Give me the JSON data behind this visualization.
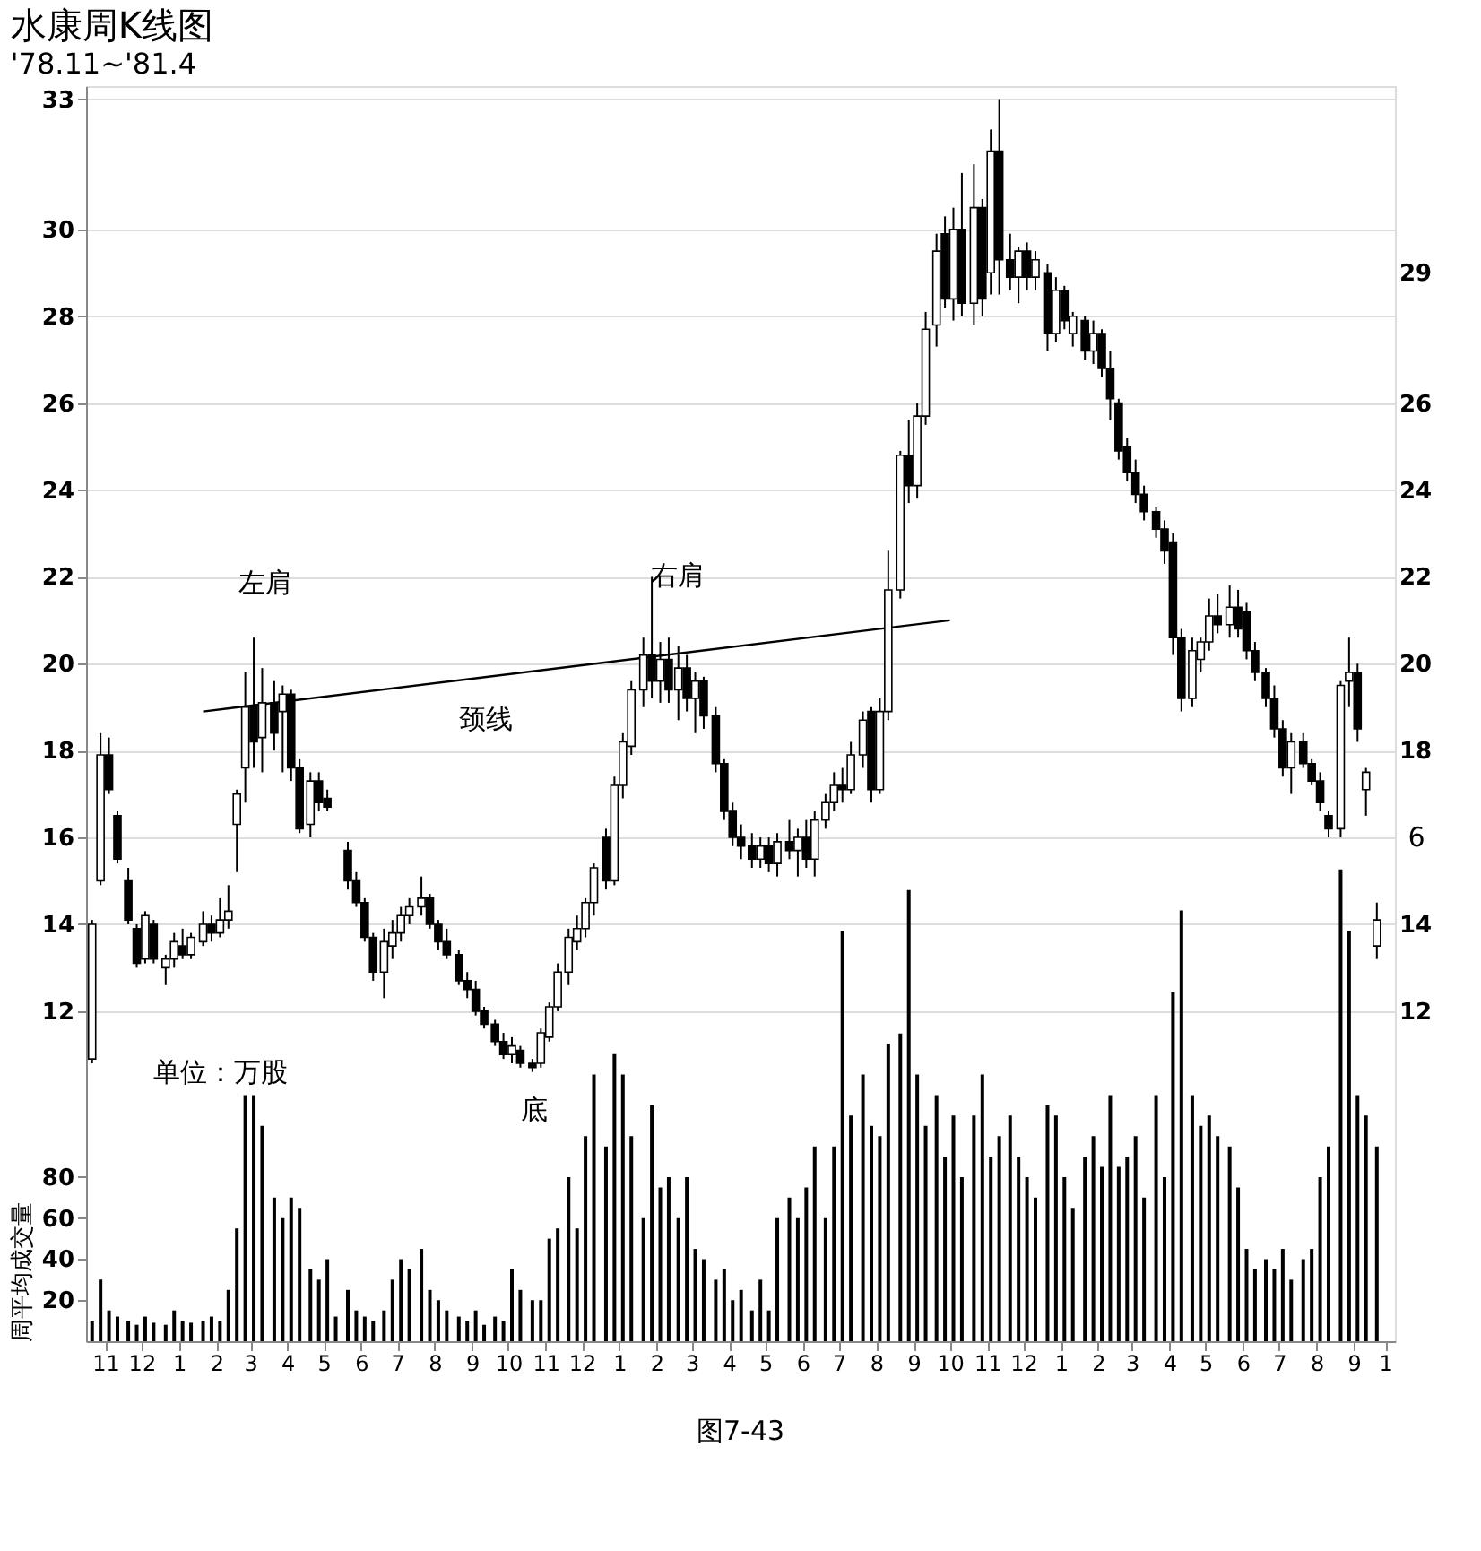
{
  "chart_data": {
    "type": "candlestick",
    "title": "水康周K线图",
    "subtitle": "'78.11~'81.4",
    "grid": "y",
    "y2label": "周平均成交量",
    "x": [
      "1978-11-01",
      "1978-11-08",
      "1978-11-15",
      "1978-11-22",
      "1978-12-01",
      "1978-12-08",
      "1978-12-15",
      "1978-12-22",
      "1979-01-01",
      "1979-01-08",
      "1979-01-15",
      "1979-01-22",
      "1979-02-01",
      "1979-02-08",
      "1979-02-15",
      "1979-02-22",
      "1979-03-01",
      "1979-03-08",
      "1979-03-15",
      "1979-03-22",
      "1979-04-01",
      "1979-04-08",
      "1979-04-15",
      "1979-04-22",
      "1979-05-01",
      "1979-05-08",
      "1979-05-15",
      "1979-05-22",
      "1979-06-01",
      "1979-06-08",
      "1979-06-15",
      "1979-06-22",
      "1979-07-01",
      "1979-07-08",
      "1979-07-15",
      "1979-07-22",
      "1979-08-01",
      "1979-08-08",
      "1979-08-15",
      "1979-08-22",
      "1979-09-01",
      "1979-09-08",
      "1979-09-15",
      "1979-09-22",
      "1979-10-01",
      "1979-10-08",
      "1979-10-15",
      "1979-10-22",
      "1979-11-01",
      "1979-11-08",
      "1979-11-15",
      "1979-11-22",
      "1979-12-01",
      "1979-12-08",
      "1979-12-15",
      "1979-12-22",
      "1980-01-01",
      "1980-01-08",
      "1980-01-15",
      "1980-01-22",
      "1980-02-01",
      "1980-02-08",
      "1980-02-15",
      "1980-02-22",
      "1980-03-01",
      "1980-03-08",
      "1980-03-15",
      "1980-03-22",
      "1980-04-01",
      "1980-04-08",
      "1980-04-15",
      "1980-04-22",
      "1980-05-01",
      "1980-05-08",
      "1980-05-15",
      "1980-05-22",
      "1980-06-01",
      "1980-06-08",
      "1980-06-15",
      "1980-06-22",
      "1980-07-01",
      "1980-07-08",
      "1980-07-15",
      "1980-07-22",
      "1980-08-01",
      "1980-08-08",
      "1980-08-15",
      "1980-08-22",
      "1980-09-01",
      "1980-09-08",
      "1980-09-15",
      "1980-09-22",
      "1980-10-01",
      "1980-10-08",
      "1980-10-15",
      "1980-10-22",
      "1980-11-01",
      "1980-11-08",
      "1980-11-15",
      "1980-11-22",
      "1980-12-01",
      "1980-12-08",
      "1980-12-15",
      "1980-12-22",
      "1981-01-01",
      "1981-01-08",
      "1981-01-15",
      "1981-01-22",
      "1981-02-01",
      "1981-02-08",
      "1981-02-15",
      "1981-02-22",
      "1981-03-01",
      "1981-03-08",
      "1981-03-15",
      "1981-03-22",
      "1981-04-01",
      "1981-04-08",
      "1981-04-15",
      "1981-04-22",
      "1981-05-01",
      "1981-05-08",
      "1981-05-15",
      "1981-05-22",
      "1981-06-01",
      "1981-06-08",
      "1981-06-15",
      "1981-06-22",
      "1981-07-01",
      "1981-07-08",
      "1981-07-15",
      "1981-07-22",
      "1981-08-01",
      "1981-08-08",
      "1981-08-15",
      "1981-08-22",
      "1981-09-01",
      "1981-09-08",
      "1981-09-15",
      "1981-09-22",
      "1981-10-01"
    ],
    "ohlc": [
      [
        10.9,
        14.1,
        10.8,
        14.0
      ],
      [
        15.0,
        18.4,
        14.9,
        17.9
      ],
      [
        17.9,
        18.3,
        17.0,
        17.1
      ],
      [
        16.5,
        16.6,
        15.4,
        15.5
      ],
      [
        15.0,
        15.3,
        14.0,
        14.1
      ],
      [
        13.9,
        14.0,
        13.0,
        13.1
      ],
      [
        13.2,
        14.3,
        13.1,
        14.2
      ],
      [
        14.0,
        14.1,
        13.1,
        13.2
      ],
      [
        13.0,
        13.3,
        12.6,
        13.2
      ],
      [
        13.2,
        13.8,
        13.0,
        13.6
      ],
      [
        13.5,
        13.9,
        13.2,
        13.3
      ],
      [
        13.3,
        13.8,
        13.2,
        13.7
      ],
      [
        13.6,
        14.3,
        13.5,
        14.0
      ],
      [
        14.0,
        14.2,
        13.6,
        13.8
      ],
      [
        13.8,
        14.6,
        13.7,
        14.1
      ],
      [
        14.1,
        14.9,
        13.9,
        14.3
      ],
      [
        16.3,
        17.1,
        15.2,
        17.0
      ],
      [
        17.6,
        19.8,
        16.8,
        19.0
      ],
      [
        19.0,
        20.6,
        17.6,
        18.2
      ],
      [
        18.3,
        19.9,
        17.5,
        19.1
      ],
      [
        19.1,
        19.6,
        18.0,
        18.4
      ],
      [
        18.9,
        19.5,
        17.5,
        19.3
      ],
      [
        19.3,
        19.4,
        17.3,
        17.6
      ],
      [
        17.6,
        17.8,
        16.1,
        16.2
      ],
      [
        16.3,
        17.5,
        16.0,
        17.3
      ],
      [
        17.3,
        17.5,
        16.6,
        16.8
      ],
      [
        16.9,
        17.1,
        16.6,
        16.7
      ],
      null,
      [
        15.7,
        15.9,
        14.8,
        15.0
      ],
      [
        15.0,
        15.2,
        14.4,
        14.5
      ],
      [
        14.5,
        14.6,
        13.6,
        13.7
      ],
      [
        13.7,
        13.8,
        12.7,
        12.9
      ],
      [
        12.9,
        13.9,
        12.3,
        13.6
      ],
      [
        13.5,
        14.1,
        13.2,
        13.8
      ],
      [
        13.8,
        14.4,
        13.6,
        14.2
      ],
      [
        14.2,
        14.6,
        14.0,
        14.4
      ],
      [
        14.4,
        15.1,
        14.2,
        14.6
      ],
      [
        14.6,
        14.7,
        13.9,
        14.0
      ],
      [
        14.0,
        14.1,
        13.4,
        13.6
      ],
      [
        13.6,
        13.9,
        13.2,
        13.3
      ],
      [
        13.3,
        13.4,
        12.6,
        12.7
      ],
      [
        12.7,
        12.9,
        12.3,
        12.5
      ],
      [
        12.5,
        12.7,
        11.9,
        12.0
      ],
      [
        12.0,
        12.1,
        11.6,
        11.7
      ],
      [
        11.7,
        11.8,
        11.2,
        11.3
      ],
      [
        11.3,
        11.5,
        10.9,
        11.0
      ],
      [
        11.0,
        11.4,
        10.8,
        11.2
      ],
      [
        11.1,
        11.2,
        10.7,
        10.8
      ],
      [
        10.8,
        10.9,
        10.6,
        10.7
      ],
      [
        10.8,
        11.6,
        10.7,
        11.5
      ],
      [
        11.4,
        12.2,
        11.3,
        12.1
      ],
      [
        12.1,
        13.1,
        12.0,
        12.9
      ],
      [
        12.9,
        13.9,
        12.6,
        13.7
      ],
      [
        13.6,
        14.2,
        13.4,
        13.9
      ],
      [
        13.9,
        14.6,
        13.7,
        14.5
      ],
      [
        14.5,
        15.4,
        14.2,
        15.3
      ],
      [
        16.0,
        16.2,
        14.8,
        15.0
      ],
      [
        15.0,
        17.4,
        14.9,
        17.2
      ],
      [
        17.2,
        18.4,
        16.9,
        18.2
      ],
      [
        18.1,
        19.6,
        17.9,
        19.4
      ],
      [
        19.4,
        20.6,
        19.0,
        20.2
      ],
      [
        20.2,
        22.0,
        19.2,
        19.6
      ],
      [
        19.6,
        20.5,
        19.1,
        20.1
      ],
      [
        20.1,
        20.6,
        19.1,
        19.4
      ],
      [
        19.4,
        20.4,
        18.7,
        19.9
      ],
      [
        19.9,
        20.2,
        18.9,
        19.2
      ],
      [
        19.2,
        19.8,
        18.4,
        19.6
      ],
      [
        19.6,
        19.7,
        18.5,
        18.8
      ],
      [
        18.8,
        19.0,
        17.5,
        17.7
      ],
      [
        17.7,
        17.8,
        16.4,
        16.6
      ],
      [
        16.6,
        16.8,
        15.8,
        16.0
      ],
      [
        16.0,
        16.3,
        15.5,
        15.8
      ],
      [
        15.8,
        16.1,
        15.3,
        15.5
      ],
      [
        15.5,
        16.0,
        15.3,
        15.8
      ],
      [
        15.8,
        16.0,
        15.2,
        15.4
      ],
      [
        15.4,
        16.1,
        15.1,
        15.9
      ],
      [
        15.9,
        16.4,
        15.5,
        15.7
      ],
      [
        15.7,
        16.2,
        15.1,
        16.0
      ],
      [
        16.0,
        16.4,
        15.3,
        15.5
      ],
      [
        15.5,
        16.6,
        15.1,
        16.4
      ],
      [
        16.4,
        17.0,
        16.2,
        16.8
      ],
      [
        16.8,
        17.5,
        16.6,
        17.2
      ],
      [
        17.2,
        17.6,
        16.8,
        17.1
      ],
      [
        17.1,
        18.2,
        17.0,
        17.9
      ],
      [
        17.9,
        18.9,
        17.6,
        18.7
      ],
      [
        18.9,
        19.0,
        16.8,
        17.1
      ],
      [
        17.1,
        19.2,
        17.0,
        18.9
      ],
      [
        18.9,
        22.6,
        18.7,
        21.7
      ],
      [
        21.7,
        24.9,
        21.5,
        24.8
      ],
      [
        24.8,
        25.6,
        23.7,
        24.1
      ],
      [
        24.1,
        26.0,
        23.8,
        25.7
      ],
      [
        25.7,
        28.1,
        25.5,
        27.7
      ],
      [
        27.8,
        29.9,
        27.3,
        29.5
      ],
      [
        29.9,
        30.3,
        28.2,
        28.4
      ],
      [
        28.4,
        30.5,
        27.9,
        30.0
      ],
      [
        30.0,
        31.3,
        28.0,
        28.3
      ],
      [
        28.3,
        31.5,
        27.8,
        30.5
      ],
      [
        30.5,
        30.7,
        28.0,
        28.4
      ],
      [
        29.0,
        32.3,
        28.5,
        31.8
      ],
      [
        31.8,
        33.0,
        28.5,
        29.3
      ],
      [
        29.3,
        29.9,
        28.6,
        28.9
      ],
      [
        28.9,
        29.6,
        28.3,
        29.5
      ],
      [
        29.5,
        29.7,
        28.6,
        28.9
      ],
      [
        28.9,
        29.5,
        28.6,
        29.3
      ],
      [
        29.0,
        29.2,
        27.2,
        27.6
      ],
      [
        27.6,
        28.9,
        27.4,
        28.6
      ],
      [
        28.6,
        28.7,
        27.7,
        27.9
      ],
      [
        27.6,
        28.1,
        27.3,
        28.0
      ],
      [
        27.9,
        28.0,
        27.0,
        27.2
      ],
      [
        27.2,
        27.9,
        26.9,
        27.6
      ],
      [
        27.6,
        27.7,
        26.6,
        26.8
      ],
      [
        26.8,
        27.2,
        25.6,
        26.1
      ],
      [
        26.0,
        26.1,
        24.7,
        24.9
      ],
      [
        25.0,
        25.2,
        24.2,
        24.4
      ],
      [
        24.4,
        24.7,
        23.7,
        23.9
      ],
      [
        23.9,
        24.1,
        23.3,
        23.5
      ],
      [
        23.5,
        23.6,
        22.9,
        23.1
      ],
      [
        23.1,
        23.3,
        22.3,
        22.6
      ],
      [
        22.8,
        23.0,
        20.2,
        20.6
      ],
      [
        20.6,
        20.8,
        18.9,
        19.2
      ],
      [
        19.2,
        20.6,
        19.0,
        20.3
      ],
      [
        20.1,
        20.6,
        19.8,
        20.5
      ],
      [
        20.5,
        21.5,
        20.3,
        21.1
      ],
      [
        21.1,
        21.6,
        20.7,
        20.9
      ],
      [
        20.9,
        21.8,
        20.6,
        21.3
      ],
      [
        21.3,
        21.7,
        20.6,
        20.8
      ],
      [
        21.2,
        21.4,
        20.1,
        20.3
      ],
      [
        20.3,
        20.5,
        19.6,
        19.8
      ],
      [
        19.8,
        19.9,
        19.0,
        19.2
      ],
      [
        19.2,
        19.5,
        18.3,
        18.5
      ],
      [
        18.5,
        18.7,
        17.4,
        17.6
      ],
      [
        17.6,
        18.4,
        17.0,
        18.2
      ],
      [
        18.2,
        18.4,
        17.6,
        17.7
      ],
      [
        17.7,
        17.8,
        17.2,
        17.3
      ],
      [
        17.3,
        17.5,
        16.6,
        16.8
      ],
      [
        16.5,
        16.6,
        16.0,
        16.2
      ],
      [
        16.2,
        19.6,
        16.0,
        19.5
      ],
      [
        19.6,
        20.6,
        19.0,
        19.8
      ],
      [
        19.8,
        20.0,
        18.2,
        18.5
      ],
      [
        17.1,
        17.6,
        16.5,
        17.5
      ],
      [
        13.5,
        14.5,
        13.2,
        14.1
      ]
    ],
    "colors": [
      "#ffffff",
      "#ffffff",
      "#000000",
      "#000000",
      "#000000",
      "#000000",
      "#ffffff",
      "#000000",
      "#ffffff",
      "#ffffff",
      "#000000",
      "#ffffff",
      "#ffffff",
      "#000000",
      "#ffffff",
      "#ffffff",
      "#ffffff",
      "#ffffff",
      "#000000",
      "#ffffff",
      "#000000",
      "#ffffff",
      "#000000",
      "#000000",
      "#ffffff",
      "#000000",
      "#000000",
      null,
      "#000000",
      "#000000",
      "#000000",
      "#000000",
      "#ffffff",
      "#ffffff",
      "#ffffff",
      "#ffffff",
      "#ffffff",
      "#000000",
      "#000000",
      "#000000",
      "#000000",
      "#000000",
      "#000000",
      "#000000",
      "#000000",
      "#000000",
      "#ffffff",
      "#000000",
      "#000000",
      "#ffffff",
      "#ffffff",
      "#ffffff",
      "#ffffff",
      "#ffffff",
      "#ffffff",
      "#ffffff",
      "#000000",
      "#ffffff",
      "#ffffff",
      "#ffffff",
      "#ffffff",
      "#000000",
      "#ffffff",
      "#000000",
      "#ffffff",
      "#000000",
      "#ffffff",
      "#000000",
      "#000000",
      "#000000",
      "#000000",
      "#000000",
      "#000000",
      "#ffffff",
      "#000000",
      "#ffffff",
      "#000000",
      "#ffffff",
      "#000000",
      "#ffffff",
      "#ffffff",
      "#ffffff",
      "#000000",
      "#ffffff",
      "#ffffff",
      "#000000",
      "#ffffff",
      "#ffffff",
      "#ffffff",
      "#000000",
      "#ffffff",
      "#ffffff",
      "#ffffff",
      "#000000",
      "#ffffff",
      "#000000",
      "#ffffff",
      "#000000",
      "#ffffff",
      "#000000",
      "#000000",
      "#ffffff",
      "#000000",
      "#ffffff",
      "#000000",
      "#ffffff",
      "#000000",
      "#ffffff",
      "#000000",
      "#ffffff",
      "#000000",
      "#000000",
      "#000000",
      "#000000",
      "#000000",
      "#000000",
      "#000000",
      "#000000",
      "#000000",
      "#000000",
      "#ffffff",
      "#ffffff",
      "#ffffff",
      "#000000",
      "#ffffff",
      "#000000",
      "#000000",
      "#000000",
      "#000000",
      "#000000",
      "#000000",
      "#ffffff",
      "#000000",
      "#000000",
      "#000000",
      "#000000",
      "#ffffff",
      "#ffffff",
      "#000000",
      "#ffffff",
      "#ffffff"
    ],
    "series": [
      {
        "type": "line",
        "color": "#000000",
        "x": [
          "1979-02-01",
          "1980-10-12"
        ],
        "values": [
          18.9,
          21.0
        ]
      },
      {
        "type": "bar",
        "axis": "y2",
        "color": "#000000",
        "values": [
          10,
          30,
          15,
          12,
          10,
          8,
          12,
          9,
          8,
          15,
          10,
          9,
          10,
          12,
          10,
          25,
          55,
          120,
          120,
          105,
          70,
          60,
          70,
          65,
          35,
          30,
          40,
          12,
          25,
          15,
          12,
          10,
          15,
          30,
          40,
          35,
          45,
          25,
          20,
          15,
          12,
          10,
          15,
          8,
          12,
          10,
          35,
          25,
          20,
          20,
          50,
          55,
          80,
          55,
          100,
          130,
          95,
          140,
          130,
          100,
          60,
          115,
          75,
          80,
          60,
          80,
          45,
          40,
          30,
          35,
          20,
          25,
          15,
          30,
          15,
          60,
          70,
          60,
          75,
          95,
          60,
          95,
          200,
          110,
          130,
          105,
          100,
          145,
          150,
          220,
          130,
          105,
          120,
          90,
          110,
          80,
          110,
          130,
          90,
          100,
          110,
          90,
          80,
          70,
          115,
          110,
          80,
          65,
          90,
          100,
          85,
          120,
          85,
          90,
          100,
          70,
          120,
          80,
          170,
          210,
          120,
          105,
          110,
          100,
          95,
          75,
          45,
          35,
          40,
          35,
          45,
          30,
          40,
          45,
          80,
          95,
          230,
          200,
          120,
          110,
          95
        ]
      }
    ],
    "xlim": [
      "1978-10-27",
      "1981-10-16"
    ],
    "xticks": [
      {
        "value": "1978-11-12",
        "label": "11"
      },
      {
        "value": "1978-12-12",
        "label": "12"
      },
      {
        "value": "1979-01-12",
        "label": "1"
      },
      {
        "value": "1979-02-12",
        "label": "2"
      },
      {
        "value": "1979-03-12",
        "label": "3"
      },
      {
        "value": "1979-04-12",
        "label": "4"
      },
      {
        "value": "1979-05-12",
        "label": "5"
      },
      {
        "value": "1979-06-12",
        "label": "6"
      },
      {
        "value": "1979-07-12",
        "label": "7"
      },
      {
        "value": "1979-08-12",
        "label": "8"
      },
      {
        "value": "1979-09-12",
        "label": "9"
      },
      {
        "value": "1979-10-12",
        "label": "10"
      },
      {
        "value": "1979-11-12",
        "label": "11"
      },
      {
        "value": "1979-12-12",
        "label": "12"
      },
      {
        "value": "1980-01-12",
        "label": "1"
      },
      {
        "value": "1980-02-12",
        "label": "2"
      },
      {
        "value": "1980-03-12",
        "label": "3"
      },
      {
        "value": "1980-04-12",
        "label": "4"
      },
      {
        "value": "1980-05-12",
        "label": "5"
      },
      {
        "value": "1980-06-12",
        "label": "6"
      },
      {
        "value": "1980-07-12",
        "label": "7"
      },
      {
        "value": "1980-08-12",
        "label": "8"
      },
      {
        "value": "1980-09-12",
        "label": "9"
      },
      {
        "value": "1980-10-12",
        "label": "10"
      },
      {
        "value": "1980-11-12",
        "label": "11"
      },
      {
        "value": "1980-12-12",
        "label": "12"
      },
      {
        "value": "1981-01-12",
        "label": "1"
      },
      {
        "value": "1981-02-12",
        "label": "2"
      },
      {
        "value": "1981-03-12",
        "label": "3"
      },
      {
        "value": "1981-04-12",
        "label": "4"
      },
      {
        "value": "1981-05-12",
        "label": "5"
      },
      {
        "value": "1981-06-12",
        "label": "6"
      },
      {
        "value": "1981-07-12",
        "label": "7"
      },
      {
        "value": "1981-08-12",
        "label": "8"
      },
      {
        "value": "1981-09-12",
        "label": "9"
      },
      {
        "value": "1981-10-08",
        "label": "1"
      }
    ],
    "ylim": [
      4.4,
      33.3
    ],
    "yticks": [
      12,
      14,
      16,
      18,
      20,
      22,
      24,
      26,
      28,
      30,
      33
    ],
    "y2lim": [
      0,
      612
    ],
    "y2ticks": [
      20,
      40,
      60,
      80
    ],
    "y3lim": [
      4.4,
      33.3
    ],
    "y3ticks": [
      12,
      14,
      18,
      20,
      22,
      24,
      26,
      29
    ],
    "annotations": [
      "左肩",
      "右肩",
      "颈线",
      "底",
      "单位：万股",
      "图7-43",
      "6"
    ]
  }
}
